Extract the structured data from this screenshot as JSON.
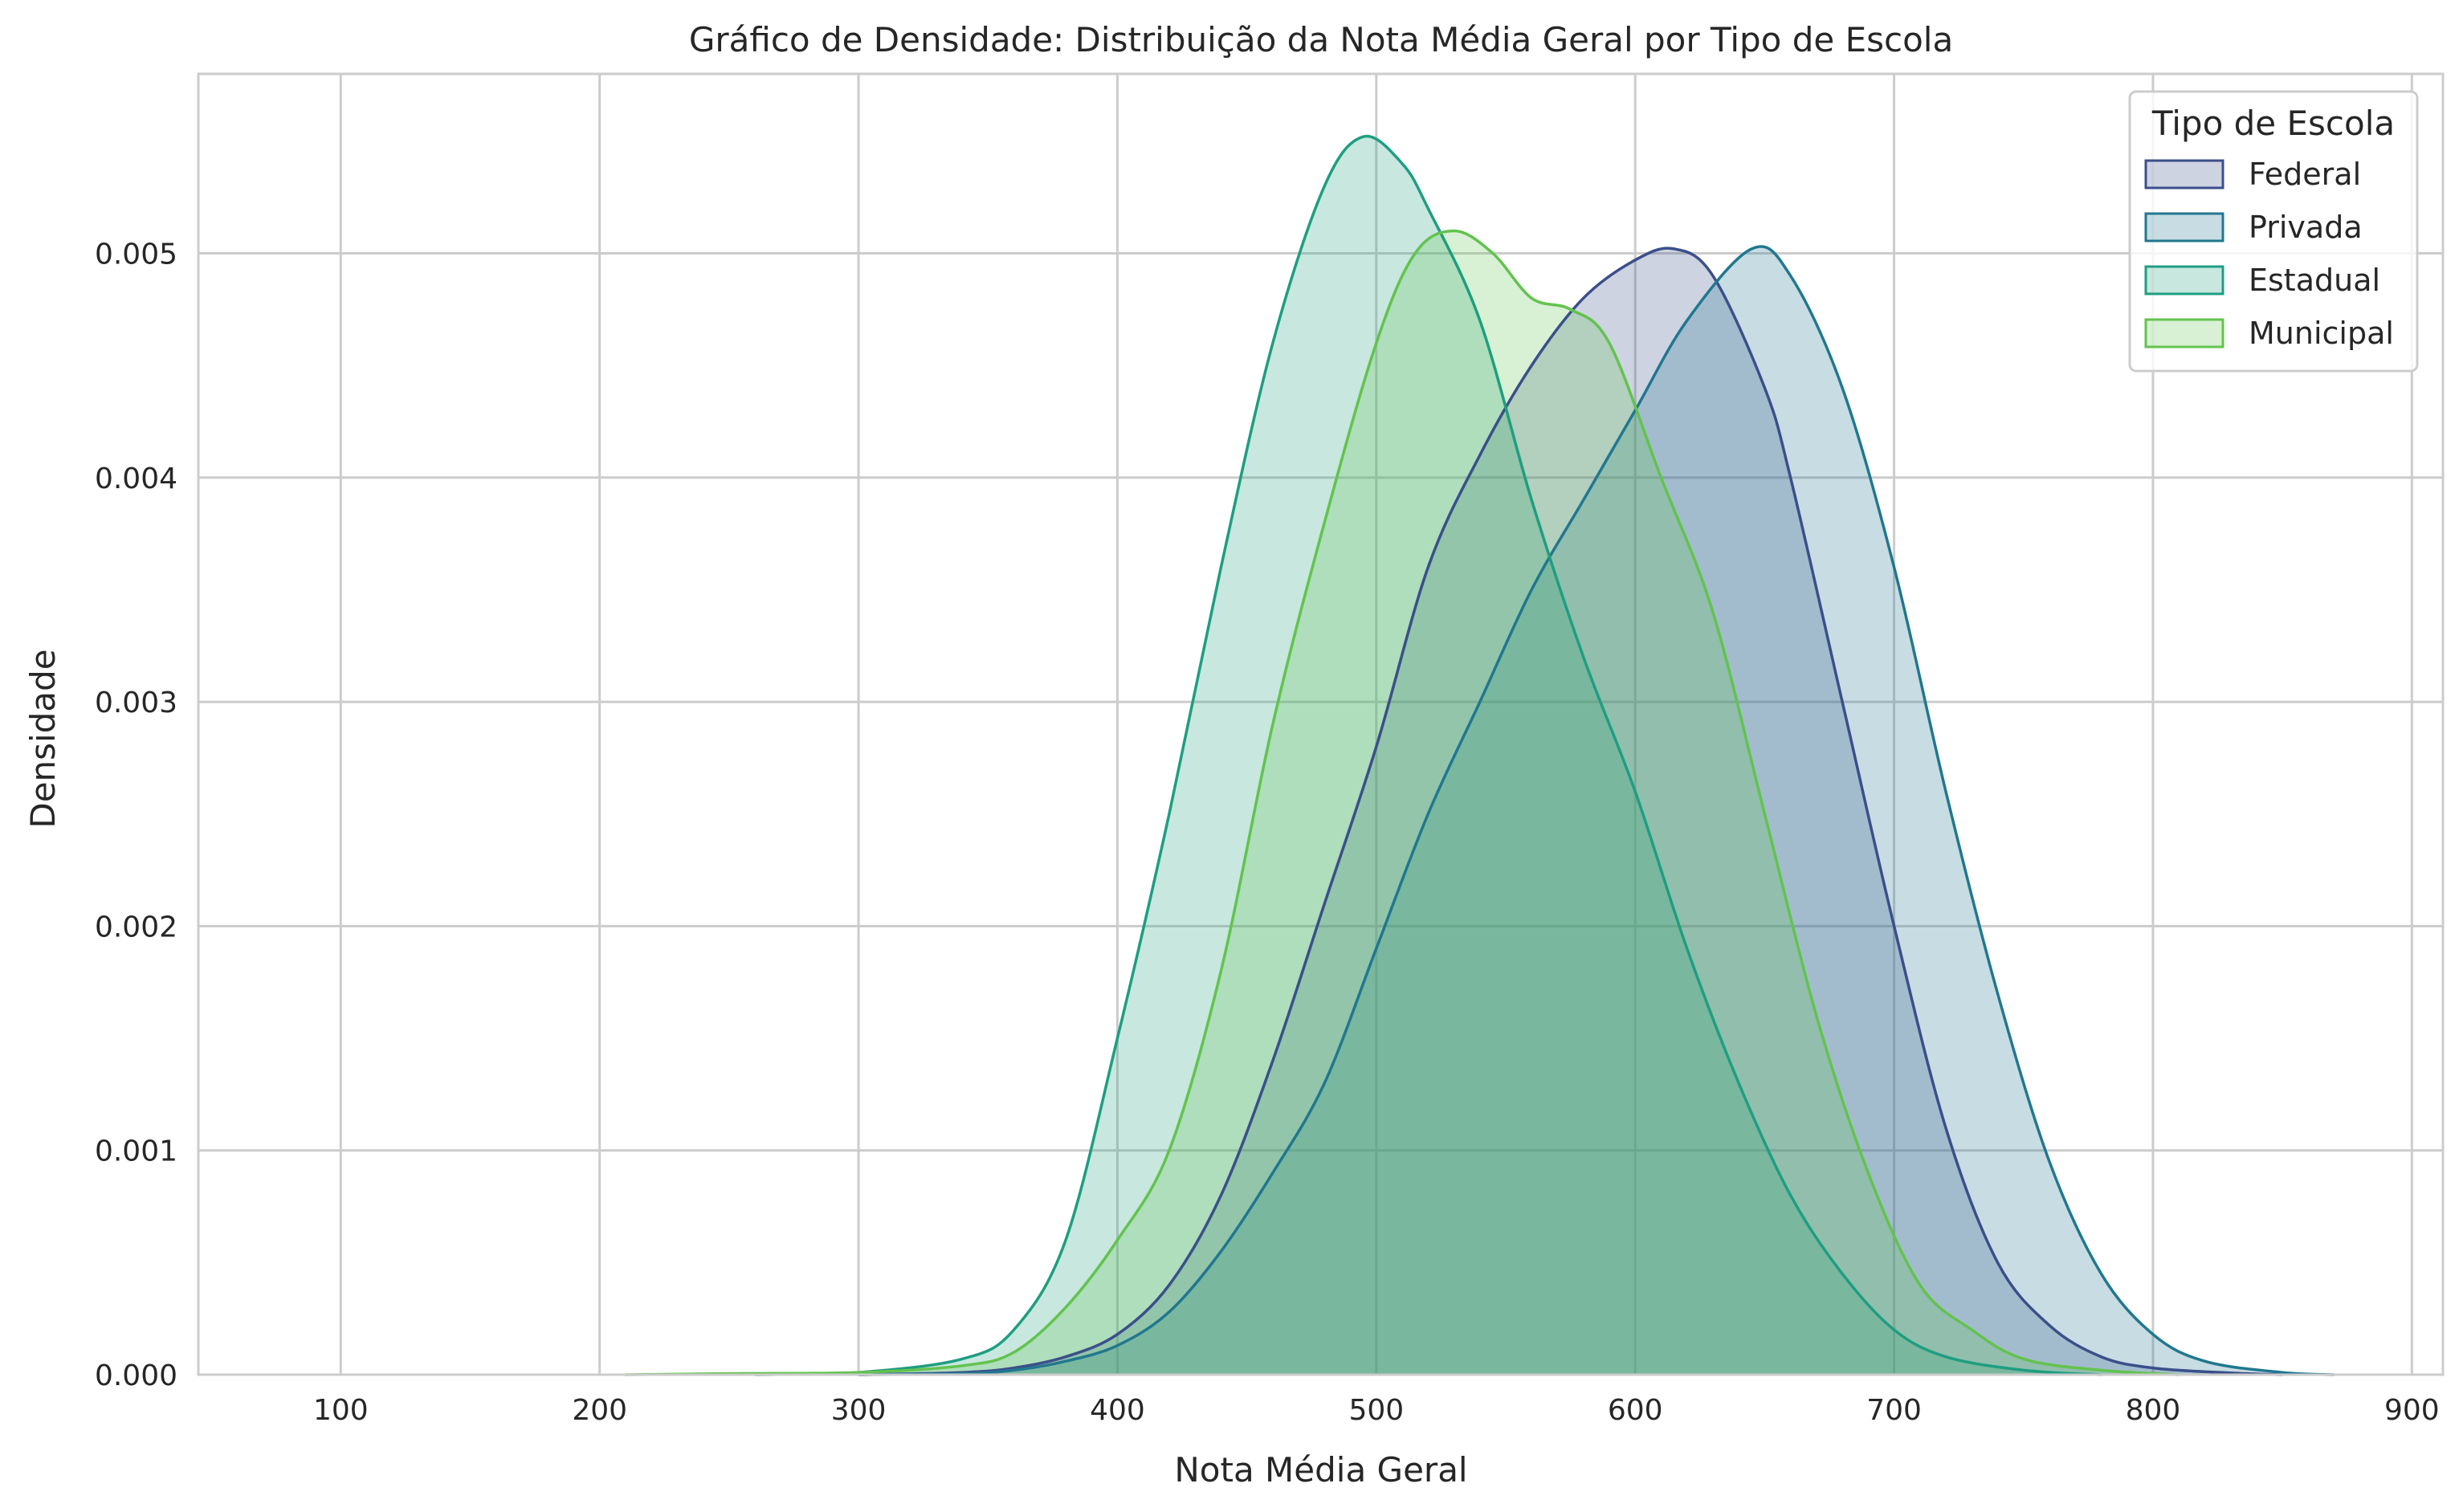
{
  "chart_data": {
    "type": "area",
    "title": "Gráfico de Densidade: Distribuição da Nota Média Geral por Tipo de Escola",
    "xlabel": "Nota Média Geral",
    "ylabel": "Densidade",
    "xlim": [
      45,
      912
    ],
    "ylim": [
      0,
      0.0058
    ],
    "x_ticks": [
      "100",
      "200",
      "300",
      "400",
      "500",
      "600",
      "700",
      "800",
      "900"
    ],
    "x_tick_values": [
      100,
      200,
      300,
      400,
      500,
      600,
      700,
      800,
      900
    ],
    "y_ticks": [
      "0.000",
      "0.001",
      "0.002",
      "0.003",
      "0.004",
      "0.005"
    ],
    "y_tick_values": [
      0,
      0.001,
      0.002,
      0.003,
      0.004,
      0.005
    ],
    "grid": true,
    "legend": {
      "title": "Tipo de Escola",
      "placement": "top-right"
    },
    "series": [
      {
        "name": "Federal",
        "color": "#3b4f8a",
        "points": [
          [
            300,
            0
          ],
          [
            340,
            1e-05
          ],
          [
            360,
            3e-05
          ],
          [
            380,
            8e-05
          ],
          [
            400,
            0.00018
          ],
          [
            420,
            0.0004
          ],
          [
            440,
            0.0008
          ],
          [
            460,
            0.0014
          ],
          [
            480,
            0.0021
          ],
          [
            500,
            0.0028
          ],
          [
            520,
            0.0036
          ],
          [
            540,
            0.0041
          ],
          [
            560,
            0.0045
          ],
          [
            580,
            0.0048
          ],
          [
            600,
            0.00497
          ],
          [
            615,
            0.00502
          ],
          [
            630,
            0.0049
          ],
          [
            650,
            0.0044
          ],
          [
            660,
            0.004
          ],
          [
            680,
            0.003
          ],
          [
            700,
            0.002
          ],
          [
            720,
            0.0011
          ],
          [
            740,
            0.0005
          ],
          [
            760,
            0.00022
          ],
          [
            780,
            8e-05
          ],
          [
            800,
            3e-05
          ],
          [
            830,
            8e-06
          ],
          [
            850,
            0
          ]
        ]
      },
      {
        "name": "Privada",
        "color": "#21778f",
        "points": [
          [
            300,
            0
          ],
          [
            340,
            5e-06
          ],
          [
            360,
            2e-05
          ],
          [
            380,
            6e-05
          ],
          [
            400,
            0.00013
          ],
          [
            420,
            0.00028
          ],
          [
            440,
            0.00055
          ],
          [
            460,
            0.0009
          ],
          [
            480,
            0.0013
          ],
          [
            500,
            0.0019
          ],
          [
            520,
            0.0025
          ],
          [
            540,
            0.003
          ],
          [
            560,
            0.0035
          ],
          [
            580,
            0.0039
          ],
          [
            600,
            0.0043
          ],
          [
            620,
            0.0047
          ],
          [
            645,
            0.00502
          ],
          [
            660,
            0.0049
          ],
          [
            680,
            0.0044
          ],
          [
            700,
            0.0036
          ],
          [
            720,
            0.0026
          ],
          [
            740,
            0.0017
          ],
          [
            760,
            0.00095
          ],
          [
            780,
            0.00045
          ],
          [
            800,
            0.00018
          ],
          [
            820,
            6e-05
          ],
          [
            850,
            1e-05
          ],
          [
            870,
            0
          ]
        ]
      },
      {
        "name": "Estadual",
        "color": "#1e9e80",
        "points": [
          [
            260,
            0
          ],
          [
            300,
            1e-05
          ],
          [
            340,
            7e-05
          ],
          [
            360,
            0.0002
          ],
          [
            380,
            0.0006
          ],
          [
            400,
            0.0015
          ],
          [
            420,
            0.0025
          ],
          [
            440,
            0.0036
          ],
          [
            460,
            0.0046
          ],
          [
            480,
            0.0053
          ],
          [
            495,
            0.00552
          ],
          [
            510,
            0.0054
          ],
          [
            520,
            0.0052
          ],
          [
            540,
            0.0047
          ],
          [
            560,
            0.0039
          ],
          [
            580,
            0.0032
          ],
          [
            600,
            0.0026
          ],
          [
            620,
            0.0019
          ],
          [
            640,
            0.0013
          ],
          [
            660,
            0.0008
          ],
          [
            680,
            0.00045
          ],
          [
            700,
            0.0002
          ],
          [
            720,
            8e-05
          ],
          [
            750,
            2e-05
          ],
          [
            780,
            0
          ]
        ]
      },
      {
        "name": "Municipal",
        "color": "#62c34e",
        "points": [
          [
            210,
            0
          ],
          [
            250,
            5e-06
          ],
          [
            300,
            1e-05
          ],
          [
            340,
            4e-05
          ],
          [
            360,
            0.0001
          ],
          [
            380,
            0.0003
          ],
          [
            400,
            0.0006
          ],
          [
            420,
            0.001
          ],
          [
            440,
            0.0018
          ],
          [
            460,
            0.0029
          ],
          [
            480,
            0.0038
          ],
          [
            500,
            0.0046
          ],
          [
            515,
            0.005
          ],
          [
            530,
            0.0051
          ],
          [
            545,
            0.005
          ],
          [
            560,
            0.0048
          ],
          [
            575,
            0.00475
          ],
          [
            590,
            0.0046
          ],
          [
            610,
            0.004
          ],
          [
            630,
            0.0034
          ],
          [
            650,
            0.0025
          ],
          [
            670,
            0.0016
          ],
          [
            690,
            0.0009
          ],
          [
            710,
            0.0004
          ],
          [
            730,
            0.0002
          ],
          [
            750,
            7e-05
          ],
          [
            780,
            2e-05
          ],
          [
            810,
            0
          ]
        ]
      }
    ]
  }
}
